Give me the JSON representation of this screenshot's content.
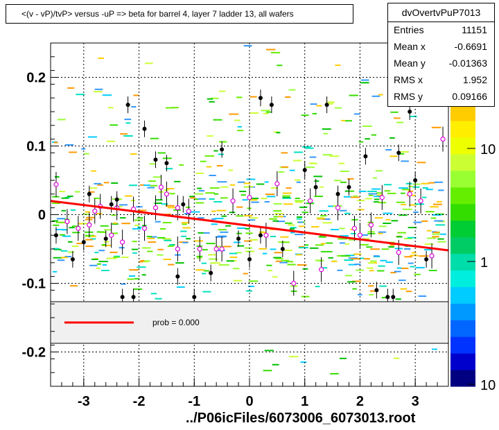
{
  "title": "<(v - vP)/tvP> versus  -uP => beta for barrel 4, layer 7 ladder 13, all wafers",
  "stats": {
    "name": "dvOvertvPuP7013",
    "rows": [
      {
        "label": "Entries",
        "value": "11151"
      },
      {
        "label": "Mean x",
        "value": "-0.6691"
      },
      {
        "label": "Mean y",
        "value": "-0.01363"
      },
      {
        "label": "RMS x",
        "value": "1.952"
      },
      {
        "label": "RMS y",
        "value": "0.09166"
      }
    ]
  },
  "footer": "../P06icFiles/6073006_6073013.root",
  "legend": {
    "entry": "prob = 0.000",
    "line_color": "#ff0000"
  },
  "chart_data": {
    "type": "scatter",
    "xlim": [
      -3.6,
      3.6
    ],
    "ylim": [
      -0.25,
      0.25
    ],
    "x_ticks": [
      -3,
      -2,
      -1,
      0,
      1,
      2,
      3
    ],
    "y_ticks": [
      -0.2,
      -0.1,
      0,
      0.1,
      0.2
    ],
    "x_tick_labels": [
      "-3",
      "-2",
      "-1",
      "0",
      "1",
      "2",
      "3"
    ],
    "y_tick_labels": [
      "-0.2",
      "-0.1",
      "0",
      "0.1",
      "0.2"
    ],
    "grid": true,
    "color_scale": {
      "labels": [
        "10",
        "1",
        "10"
      ],
      "log": true
    },
    "fit_line": {
      "x": [
        -3.6,
        3.6
      ],
      "y": [
        0.02,
        -0.052
      ],
      "color": "#ff0000"
    },
    "profile_points": [
      {
        "x": -3.5,
        "y": 0.044
      },
      {
        "x": -3.3,
        "y": -0.01
      },
      {
        "x": -3.1,
        "y": -0.02
      },
      {
        "x": -2.9,
        "y": -0.015
      },
      {
        "x": -2.8,
        "y": 0.005
      },
      {
        "x": -2.7,
        "y": 0.012
      },
      {
        "x": -2.5,
        "y": -0.03
      },
      {
        "x": -2.4,
        "y": 0.01
      },
      {
        "x": -2.3,
        "y": -0.04
      },
      {
        "x": -2.1,
        "y": 0.008
      },
      {
        "x": -1.9,
        "y": -0.02
      },
      {
        "x": -1.7,
        "y": 0.01
      },
      {
        "x": -1.6,
        "y": 0.04
      },
      {
        "x": -1.5,
        "y": 0.03
      },
      {
        "x": -1.3,
        "y": -0.05
      },
      {
        "x": -1.3,
        "y": 0.01
      },
      {
        "x": -1.1,
        "y": 0.005
      },
      {
        "x": -0.9,
        "y": -0.05
      },
      {
        "x": -0.6,
        "y": -0.05
      },
      {
        "x": -0.5,
        "y": -0.05
      },
      {
        "x": -0.3,
        "y": 0.02
      },
      {
        "x": 0.0,
        "y": 0.025
      },
      {
        "x": 0.3,
        "y": -0.03
      },
      {
        "x": 0.5,
        "y": 0.045
      },
      {
        "x": 0.8,
        "y": -0.1
      },
      {
        "x": 1.1,
        "y": 0.02
      },
      {
        "x": 1.3,
        "y": -0.08
      },
      {
        "x": 1.6,
        "y": 0.01
      },
      {
        "x": 1.9,
        "y": -0.02
      },
      {
        "x": 2.0,
        "y": -0.03
      },
      {
        "x": 2.2,
        "y": -0.015
      },
      {
        "x": 2.4,
        "y": 0.025
      },
      {
        "x": 2.7,
        "y": -0.055
      },
      {
        "x": 2.9,
        "y": 0.03
      },
      {
        "x": 3.1,
        "y": 0.02
      },
      {
        "x": 3.3,
        "y": -0.06
      },
      {
        "x": 3.5,
        "y": 0.11
      }
    ],
    "black_points": [
      {
        "x": -3.5,
        "y": -0.03
      },
      {
        "x": -3.2,
        "y": -0.065
      },
      {
        "x": -3.0,
        "y": -0.04
      },
      {
        "x": -2.9,
        "y": 0.03
      },
      {
        "x": -2.6,
        "y": -0.035
      },
      {
        "x": -2.5,
        "y": 0.015
      },
      {
        "x": -2.4,
        "y": 0.022
      },
      {
        "x": -2.3,
        "y": -0.12
      },
      {
        "x": -2.2,
        "y": 0.16
      },
      {
        "x": -2.1,
        "y": -0.12
      },
      {
        "x": -1.9,
        "y": 0.125
      },
      {
        "x": -1.7,
        "y": 0.08
      },
      {
        "x": -1.5,
        "y": 0.075
      },
      {
        "x": -1.3,
        "y": -0.09
      },
      {
        "x": -1.2,
        "y": 0.015
      },
      {
        "x": -1.0,
        "y": -0.12
      },
      {
        "x": -0.7,
        "y": -0.085
      },
      {
        "x": -0.5,
        "y": 0.095
      },
      {
        "x": -0.2,
        "y": -0.035
      },
      {
        "x": 0.0,
        "y": -0.065
      },
      {
        "x": 0.2,
        "y": 0.17
      },
      {
        "x": 0.2,
        "y": -0.03
      },
      {
        "x": 0.4,
        "y": 0.16
      },
      {
        "x": 0.6,
        "y": -0.05
      },
      {
        "x": 1.0,
        "y": 0.065
      },
      {
        "x": 1.2,
        "y": 0.04
      },
      {
        "x": 1.4,
        "y": 0.16
      },
      {
        "x": 1.6,
        "y": 0.03
      },
      {
        "x": 1.8,
        "y": 0.04
      },
      {
        "x": 2.1,
        "y": 0.085
      },
      {
        "x": 2.3,
        "y": -0.11
      },
      {
        "x": 2.5,
        "y": -0.12
      },
      {
        "x": 2.6,
        "y": -0.12
      },
      {
        "x": 2.7,
        "y": 0.09
      },
      {
        "x": 2.9,
        "y": 0.15
      },
      {
        "x": 3.0,
        "y": 0.05
      },
      {
        "x": 3.2,
        "y": -0.065
      }
    ]
  }
}
